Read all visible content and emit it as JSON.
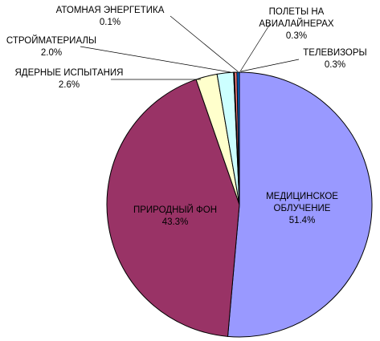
{
  "chart_data": {
    "type": "pie",
    "title": "",
    "slices": [
      {
        "name": "МЕДИЦИНСКОЕ ОБЛУЧЕНИЕ",
        "label_lines": [
          "МЕДИЦИНСКОЕ",
          "ОБЛУЧЕНИЕ"
        ],
        "value": 51.4,
        "value_label": "51.4%",
        "color": "#9999ff"
      },
      {
        "name": "ПРИРОДНЫЙ ФОН",
        "label_lines": [
          "ПРИРОДНЫЙ ФОН"
        ],
        "value": 43.3,
        "value_label": "43.3%",
        "color": "#993366"
      },
      {
        "name": "ЯДЕРНЫЕ ИСПЫТАНИЯ",
        "label_lines": [
          "ЯДЕРНЫЕ ИСПЫТАНИЯ"
        ],
        "value": 2.6,
        "value_label": "2.6%",
        "color": "#ffffcc"
      },
      {
        "name": "СТРОЙМАТЕРИАЛЫ",
        "label_lines": [
          "СТРОЙМАТЕРИАЛЫ"
        ],
        "value": 2.0,
        "value_label": "2.0%",
        "color": "#ccffff"
      },
      {
        "name": "АТОМНАЯ ЭНЕРГЕТИКА",
        "label_lines": [
          "АТОМНАЯ ЭНЕРГЕТИКА"
        ],
        "value": 0.1,
        "value_label": "0.1%",
        "color": "#660066"
      },
      {
        "name": "ПОЛЕТЫ НА АВИАЛАЙНЕРАХ",
        "label_lines": [
          "ПОЛЕТЫ НА",
          "АВИАЛАЙНЕРАХ"
        ],
        "value": 0.3,
        "value_label": "0.3%",
        "color": "#ff8080"
      },
      {
        "name": "ТЕЛЕВИЗОРЫ",
        "label_lines": [
          "ТЕЛЕВИЗОРЫ"
        ],
        "value": 0.3,
        "value_label": "0.3%",
        "color": "#0066cc"
      }
    ],
    "start_position": "top",
    "direction": "clockwise",
    "legend": "none"
  }
}
